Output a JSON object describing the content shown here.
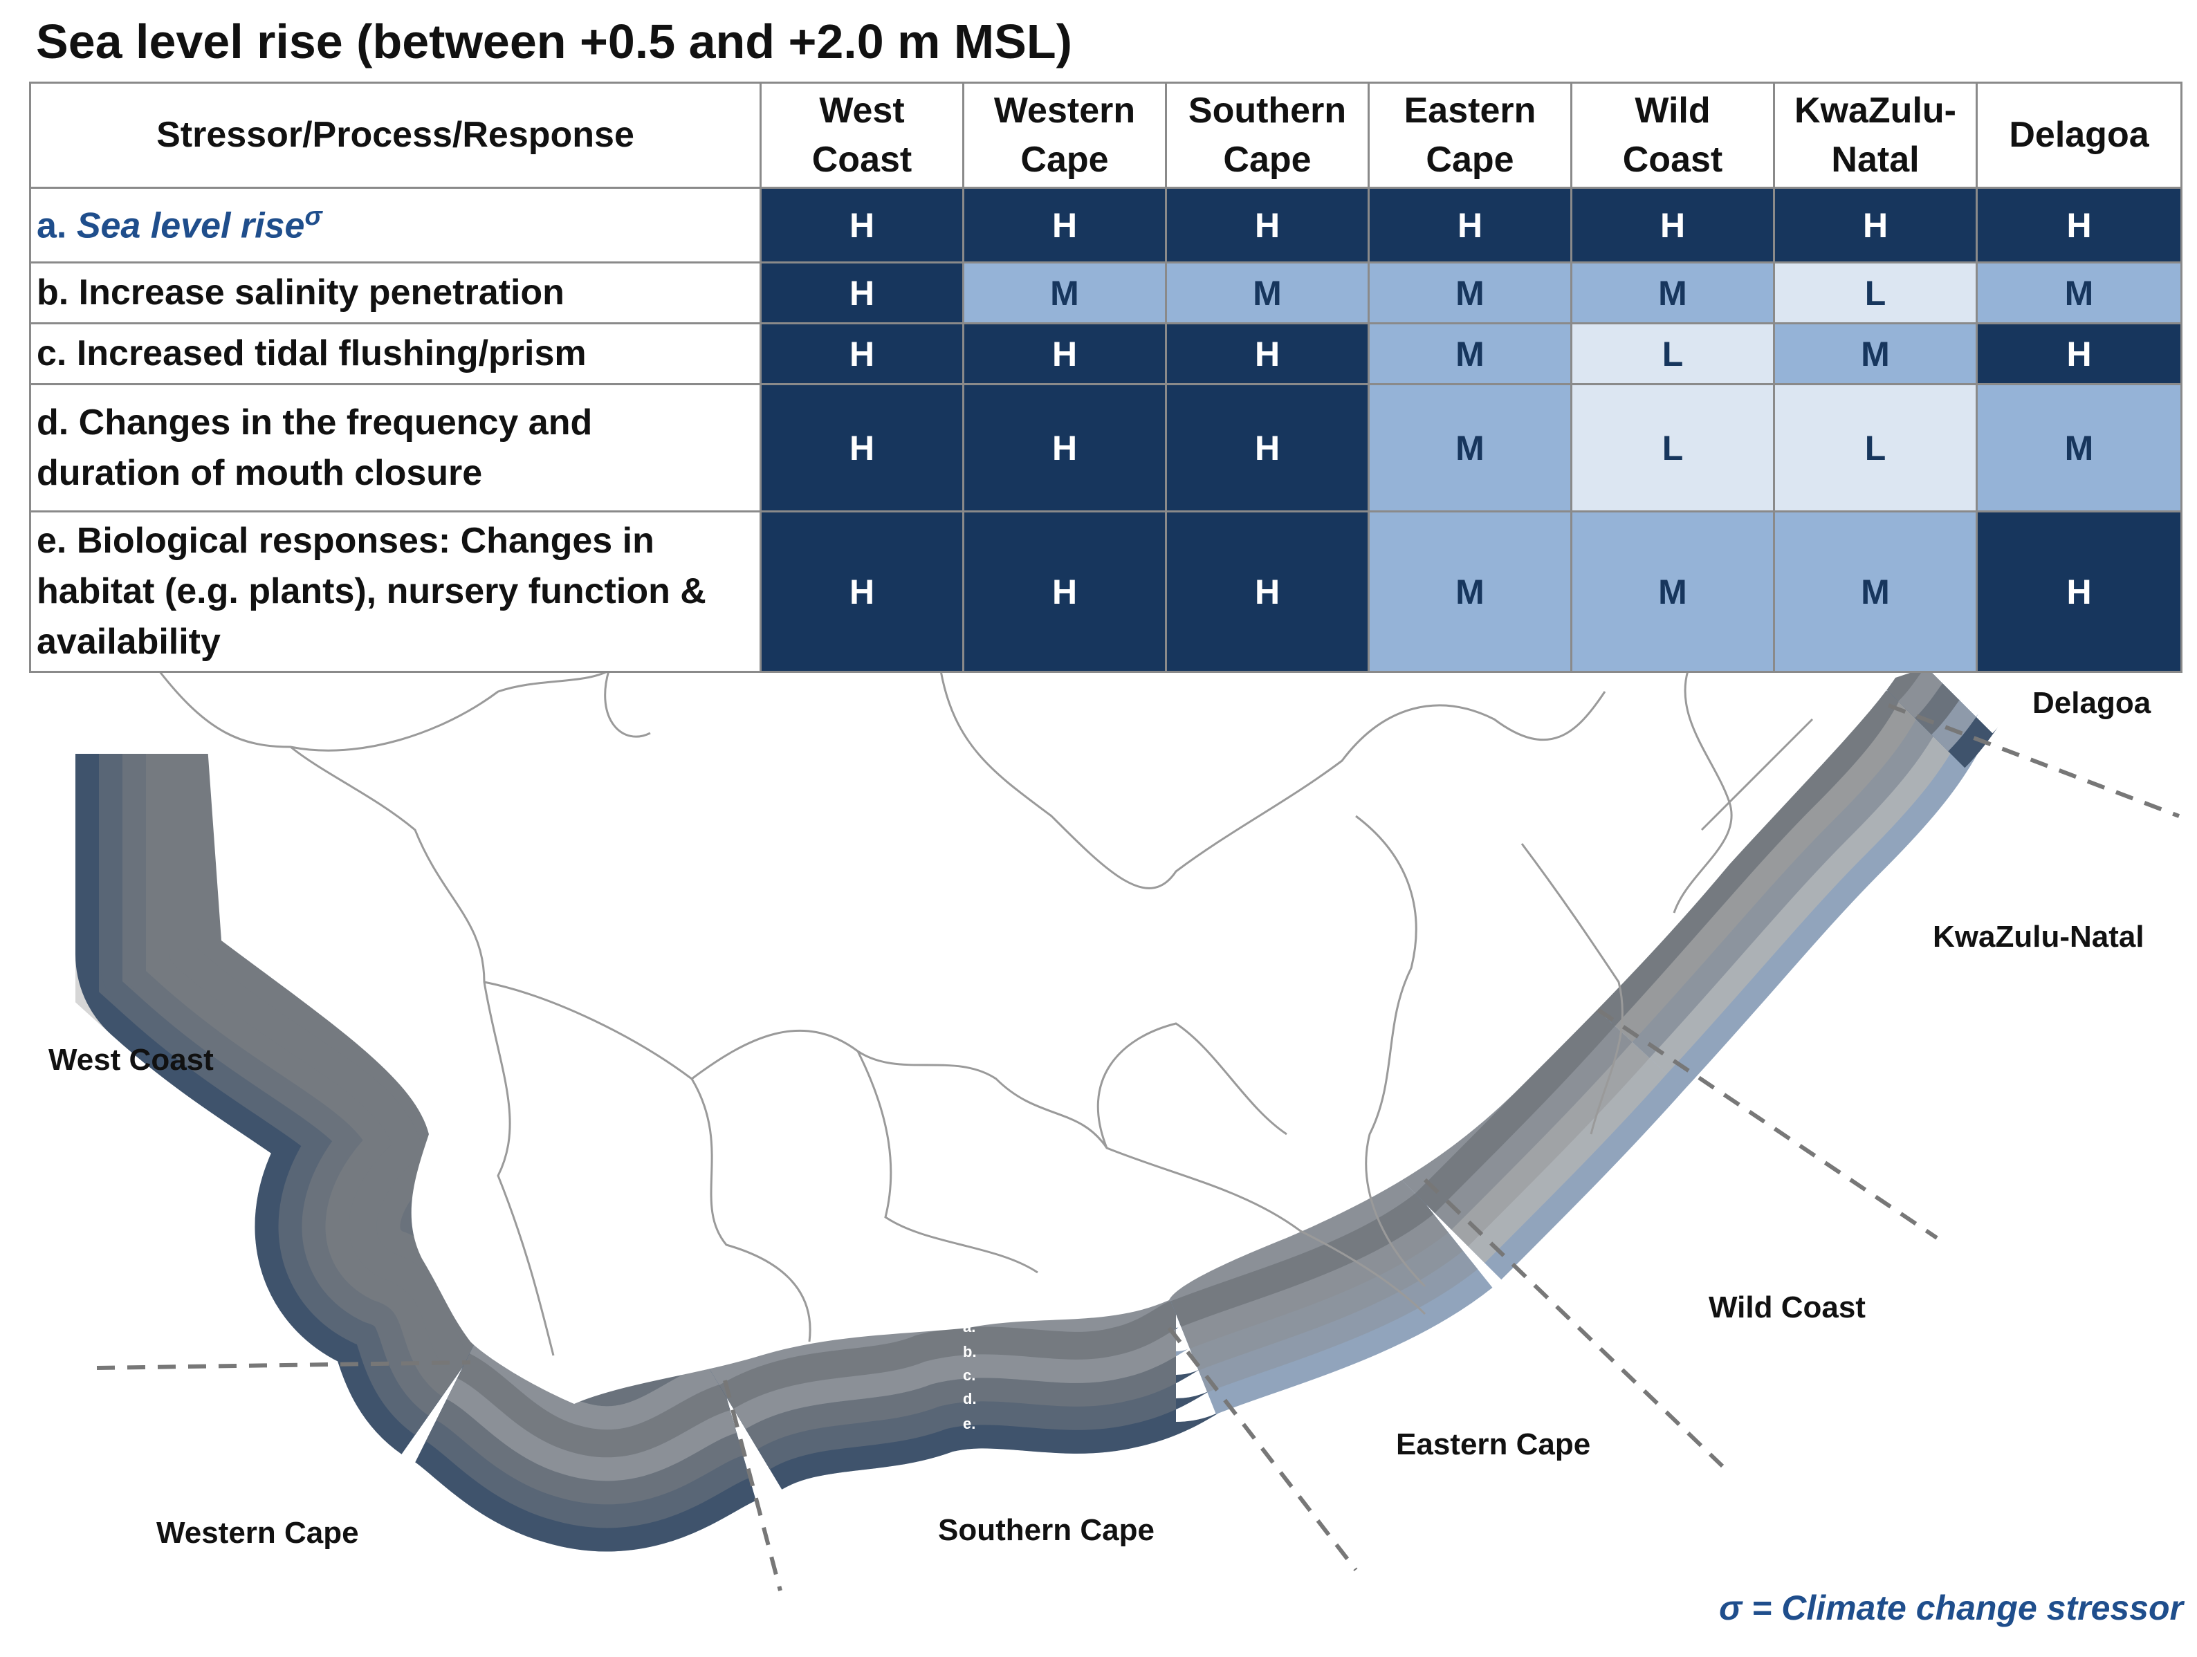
{
  "title": "Sea level rise (between +0.5 and +2.0 m MSL)",
  "table": {
    "header_first": "Stressor/Process/Response",
    "columns": [
      "West Coast",
      "Western Cape",
      "Southern Cape",
      "Eastern Cape",
      "Wild Coast",
      "KwaZulu-Natal",
      "Delagoa"
    ],
    "columns_display": [
      [
        "West",
        "Coast"
      ],
      [
        "Western",
        "Cape"
      ],
      [
        "Southern",
        "Cape"
      ],
      [
        "Eastern",
        "Cape"
      ],
      [
        "Wild",
        "Coast"
      ],
      [
        "KwaZulu-",
        "Natal"
      ],
      [
        "Delagoa",
        ""
      ]
    ],
    "rows": [
      {
        "label_prefix": "a. ",
        "label": "Sea level rise",
        "sup": "σ",
        "values": [
          "H",
          "H",
          "H",
          "H",
          "H",
          "H",
          "H"
        ]
      },
      {
        "label": "b. Increase salinity penetration",
        "values": [
          "H",
          "M",
          "M",
          "M",
          "M",
          "L",
          "M"
        ]
      },
      {
        "label": "c. Increased tidal flushing/prism",
        "values": [
          "H",
          "H",
          "H",
          "M",
          "L",
          "M",
          "H"
        ]
      },
      {
        "label_lines": [
          "d. Changes in the frequency and",
          "duration of mouth closure"
        ],
        "values": [
          "H",
          "H",
          "H",
          "M",
          "L",
          "L",
          "M"
        ]
      },
      {
        "label_lines": [
          "e. Biological responses: Changes in",
          "habitat (e.g. plants), nursery function &",
          "availability"
        ],
        "values": [
          "H",
          "H",
          "H",
          "M",
          "M",
          "M",
          "H"
        ]
      }
    ]
  },
  "legend_colors": {
    "H": "#17365d",
    "M": "#95b3d7",
    "L": "#dce6f2"
  },
  "map": {
    "region_labels": {
      "west_coast": "West Coast",
      "western_cape": "Western Cape",
      "southern_cape": "Southern Cape",
      "eastern_cape": "Eastern Cape",
      "wild_coast": "Wild Coast",
      "kwazulu_natal": "KwaZulu-Natal",
      "delagoa": "Delagoa"
    },
    "band_letters": [
      "a.",
      "b.",
      "c.",
      "d.",
      "e."
    ]
  },
  "footnote": "σ = Climate change stressor"
}
